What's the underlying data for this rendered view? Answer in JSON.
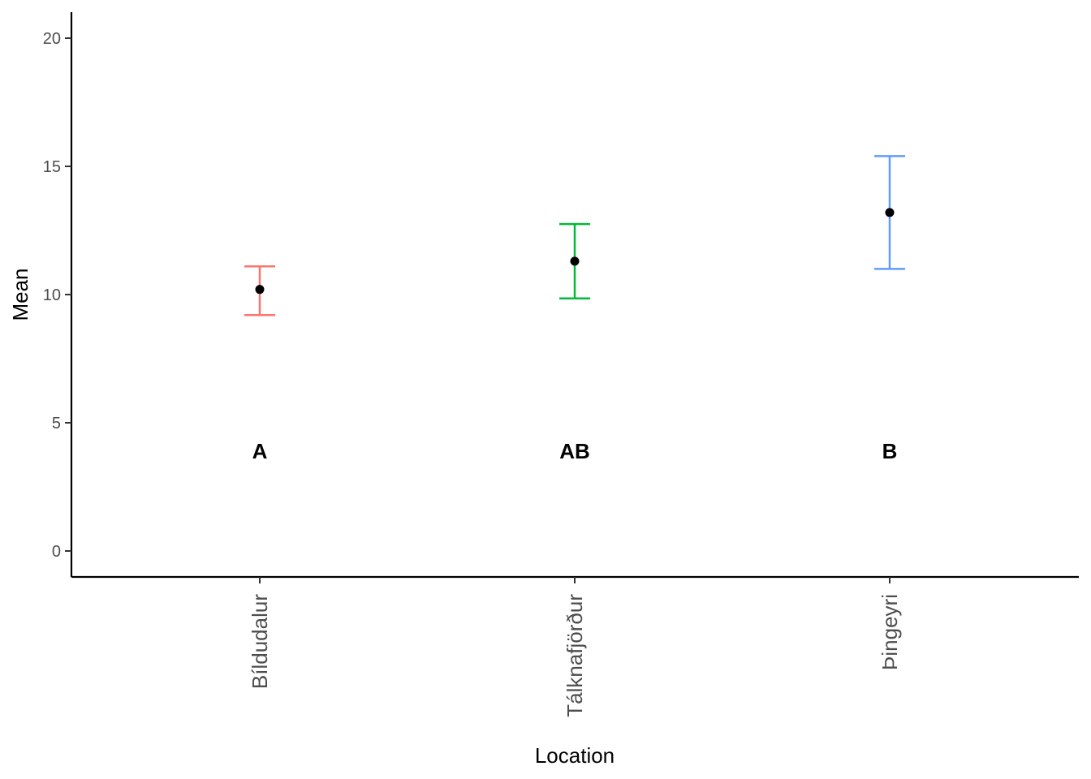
{
  "chart_data": {
    "type": "scatter",
    "title": "",
    "xlabel": "Location",
    "ylabel": "Mean",
    "categories": [
      "Bíldudalur",
      "Tálknafjörður",
      "Þingeyri"
    ],
    "y_ticks": [
      0,
      5,
      10,
      15,
      20
    ],
    "ylim": [
      -1,
      21
    ],
    "grid": false,
    "legend": "none",
    "points": [
      {
        "category": "Bíldudalur",
        "mean": 10.2,
        "lower": 9.2,
        "upper": 11.1,
        "group_label": "A",
        "color": "#F8766D"
      },
      {
        "category": "Tálknafjörður",
        "mean": 11.3,
        "lower": 9.85,
        "upper": 12.75,
        "group_label": "AB",
        "color": "#00BA38"
      },
      {
        "category": "Þingeyri",
        "mean": 13.2,
        "lower": 11.0,
        "upper": 15.4,
        "group_label": "B",
        "color": "#619CFF"
      }
    ],
    "group_label_y": 3.9
  }
}
